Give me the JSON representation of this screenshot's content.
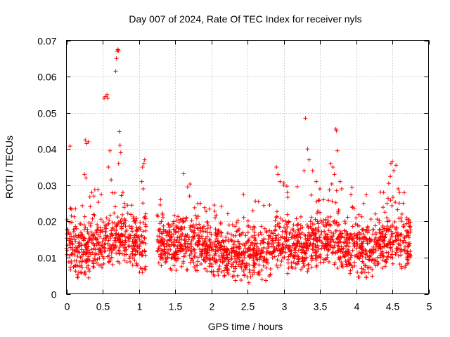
{
  "chart_data": {
    "type": "scatter",
    "title": "Day 007 of 2024, Rate Of TEC Index for receiver nyls",
    "xlabel": "GPS time / hours",
    "ylabel": "ROTI / TECUs",
    "xlim": [
      0,
      5
    ],
    "ylim": [
      0,
      0.07
    ],
    "xticks": [
      0,
      0.5,
      1,
      1.5,
      2,
      2.5,
      3,
      3.5,
      4,
      4.5,
      5
    ],
    "xtick_labels": [
      "0",
      "0.5",
      "1",
      "1.5",
      "2",
      "2.5",
      "3",
      "3.5",
      "4",
      "4.5",
      "5"
    ],
    "yticks": [
      0,
      0.01,
      0.02,
      0.03,
      0.04,
      0.05,
      0.06,
      0.07
    ],
    "ytick_labels": [
      "0",
      "0.01",
      "0.02",
      "0.03",
      "0.04",
      "0.05",
      "0.06",
      "0.07"
    ],
    "grid": true,
    "marker": "+",
    "color": "#ff0000",
    "gaps_hours": [
      [
        1.1,
        1.25
      ],
      [
        4.75,
        5
      ]
    ],
    "series": [
      {
        "name": "ROTI",
        "baseline": [
          [
            0,
            0.013
          ],
          [
            0.1,
            0.012
          ],
          [
            0.2,
            0.013
          ],
          [
            0.3,
            0.012
          ],
          [
            0.4,
            0.014
          ],
          [
            0.5,
            0.014
          ],
          [
            0.6,
            0.015
          ],
          [
            0.7,
            0.016
          ],
          [
            0.8,
            0.015
          ],
          [
            0.9,
            0.015
          ],
          [
            1.0,
            0.014
          ],
          [
            1.1,
            0.013
          ],
          [
            1.25,
            0.014
          ],
          [
            1.4,
            0.014
          ],
          [
            1.5,
            0.013
          ],
          [
            1.6,
            0.015
          ],
          [
            1.7,
            0.013
          ],
          [
            1.8,
            0.014
          ],
          [
            1.9,
            0.013
          ],
          [
            2.0,
            0.012
          ],
          [
            2.2,
            0.012
          ],
          [
            2.4,
            0.011
          ],
          [
            2.6,
            0.011
          ],
          [
            2.8,
            0.012
          ],
          [
            3.0,
            0.014
          ],
          [
            3.2,
            0.013
          ],
          [
            3.4,
            0.014
          ],
          [
            3.5,
            0.015
          ],
          [
            3.6,
            0.014
          ],
          [
            3.7,
            0.015
          ],
          [
            3.8,
            0.013
          ],
          [
            3.9,
            0.012
          ],
          [
            4.0,
            0.012
          ],
          [
            4.2,
            0.012
          ],
          [
            4.4,
            0.014
          ],
          [
            4.5,
            0.015
          ],
          [
            4.6,
            0.014
          ],
          [
            4.75,
            0.013
          ]
        ],
        "outliers": [
          [
            0.05,
            0.0408
          ],
          [
            0.26,
            0.0425
          ],
          [
            0.28,
            0.0415
          ],
          [
            0.3,
            0.042
          ],
          [
            0.25,
            0.033
          ],
          [
            0.27,
            0.032
          ],
          [
            0.35,
            0.028
          ],
          [
            0.38,
            0.027
          ],
          [
            0.52,
            0.054
          ],
          [
            0.54,
            0.0545
          ],
          [
            0.56,
            0.055
          ],
          [
            0.57,
            0.054
          ],
          [
            0.6,
            0.0395
          ],
          [
            0.58,
            0.035
          ],
          [
            0.69,
            0.065
          ],
          [
            0.7,
            0.067
          ],
          [
            0.71,
            0.0675
          ],
          [
            0.72,
            0.0672
          ],
          [
            0.68,
            0.0615
          ],
          [
            0.73,
            0.0448
          ],
          [
            0.74,
            0.041
          ],
          [
            0.75,
            0.039
          ],
          [
            0.72,
            0.036
          ],
          [
            0.78,
            0.028
          ],
          [
            0.8,
            0.025
          ],
          [
            1.05,
            0.035
          ],
          [
            1.07,
            0.036
          ],
          [
            1.08,
            0.037
          ],
          [
            1.04,
            0.031
          ],
          [
            1.06,
            0.029
          ],
          [
            1.3,
            0.026
          ],
          [
            1.7,
            0.027
          ],
          [
            1.85,
            0.025
          ],
          [
            2.9,
            0.035
          ],
          [
            2.92,
            0.033
          ],
          [
            2.95,
            0.031
          ],
          [
            3.0,
            0.03
          ],
          [
            3.05,
            0.028
          ],
          [
            3.28,
            0.034
          ],
          [
            3.3,
            0.0485
          ],
          [
            3.33,
            0.04
          ],
          [
            3.35,
            0.037
          ],
          [
            3.4,
            0.034
          ],
          [
            3.45,
            0.031
          ],
          [
            3.5,
            0.029
          ],
          [
            3.55,
            0.026
          ],
          [
            3.65,
            0.036
          ],
          [
            3.68,
            0.035
          ],
          [
            3.72,
            0.0455
          ],
          [
            3.73,
            0.045
          ],
          [
            3.74,
            0.0395
          ],
          [
            3.7,
            0.033
          ],
          [
            3.78,
            0.031
          ],
          [
            3.8,
            0.029
          ],
          [
            4.38,
            0.028
          ],
          [
            4.48,
            0.036
          ],
          [
            4.5,
            0.0365
          ],
          [
            4.52,
            0.034
          ],
          [
            4.55,
            0.0355
          ],
          [
            4.58,
            0.029
          ],
          [
            4.6,
            0.028
          ],
          [
            4.45,
            0.0305
          ],
          [
            4.65,
            0.025
          ],
          [
            4.7,
            0.021
          ]
        ]
      }
    ]
  }
}
